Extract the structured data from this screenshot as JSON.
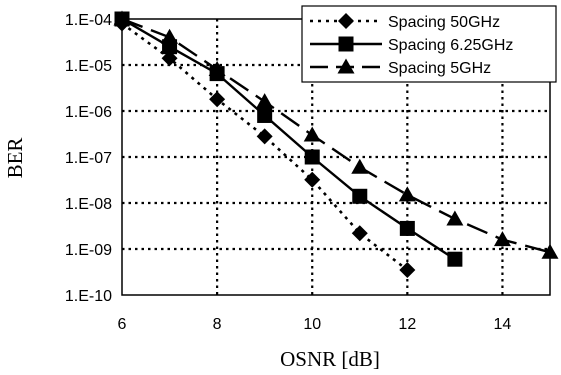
{
  "chart_data": {
    "type": "line",
    "xlabel": "OSNR [dB]",
    "ylabel": "BER",
    "x_ticks": [
      "6",
      "8",
      "10",
      "12",
      "14"
    ],
    "y_ticks": [
      "1.E-04",
      "1.E-05",
      "1.E-06",
      "1.E-07",
      "1.E-08",
      "1.E-09",
      "1.E-10"
    ],
    "xlim": [
      6,
      15
    ],
    "ylim": [
      1e-10,
      0.0001
    ],
    "y_scale": "log",
    "grid": "dotted",
    "legend_position": "top-right",
    "series": [
      {
        "name": "Spacing 50GHz",
        "marker": "diamond",
        "line_style": "dotted",
        "x": [
          6,
          7,
          8,
          9,
          10,
          11,
          12
        ],
        "y": [
          8e-05,
          1.4e-05,
          1.8e-06,
          2.8e-07,
          3.2e-08,
          2.2e-09,
          3.5e-10
        ]
      },
      {
        "name": "Spacing 6.25GHz",
        "marker": "square",
        "line_style": "solid",
        "x": [
          6,
          7,
          8,
          9,
          10,
          11,
          12,
          13
        ],
        "y": [
          0.0001,
          2.5e-05,
          6.5e-06,
          8e-07,
          1e-07,
          1.4e-08,
          2.8e-09,
          6e-10
        ]
      },
      {
        "name": "Spacing 5GHz",
        "marker": "triangle",
        "line_style": "dashed",
        "x": [
          6,
          7,
          8,
          9,
          10,
          11,
          12,
          13,
          14,
          15
        ],
        "y": [
          0.0001,
          4e-05,
          8e-06,
          1.6e-06,
          3e-07,
          6e-08,
          1.5e-08,
          4.5e-09,
          1.6e-09,
          8.5e-10
        ]
      }
    ]
  }
}
